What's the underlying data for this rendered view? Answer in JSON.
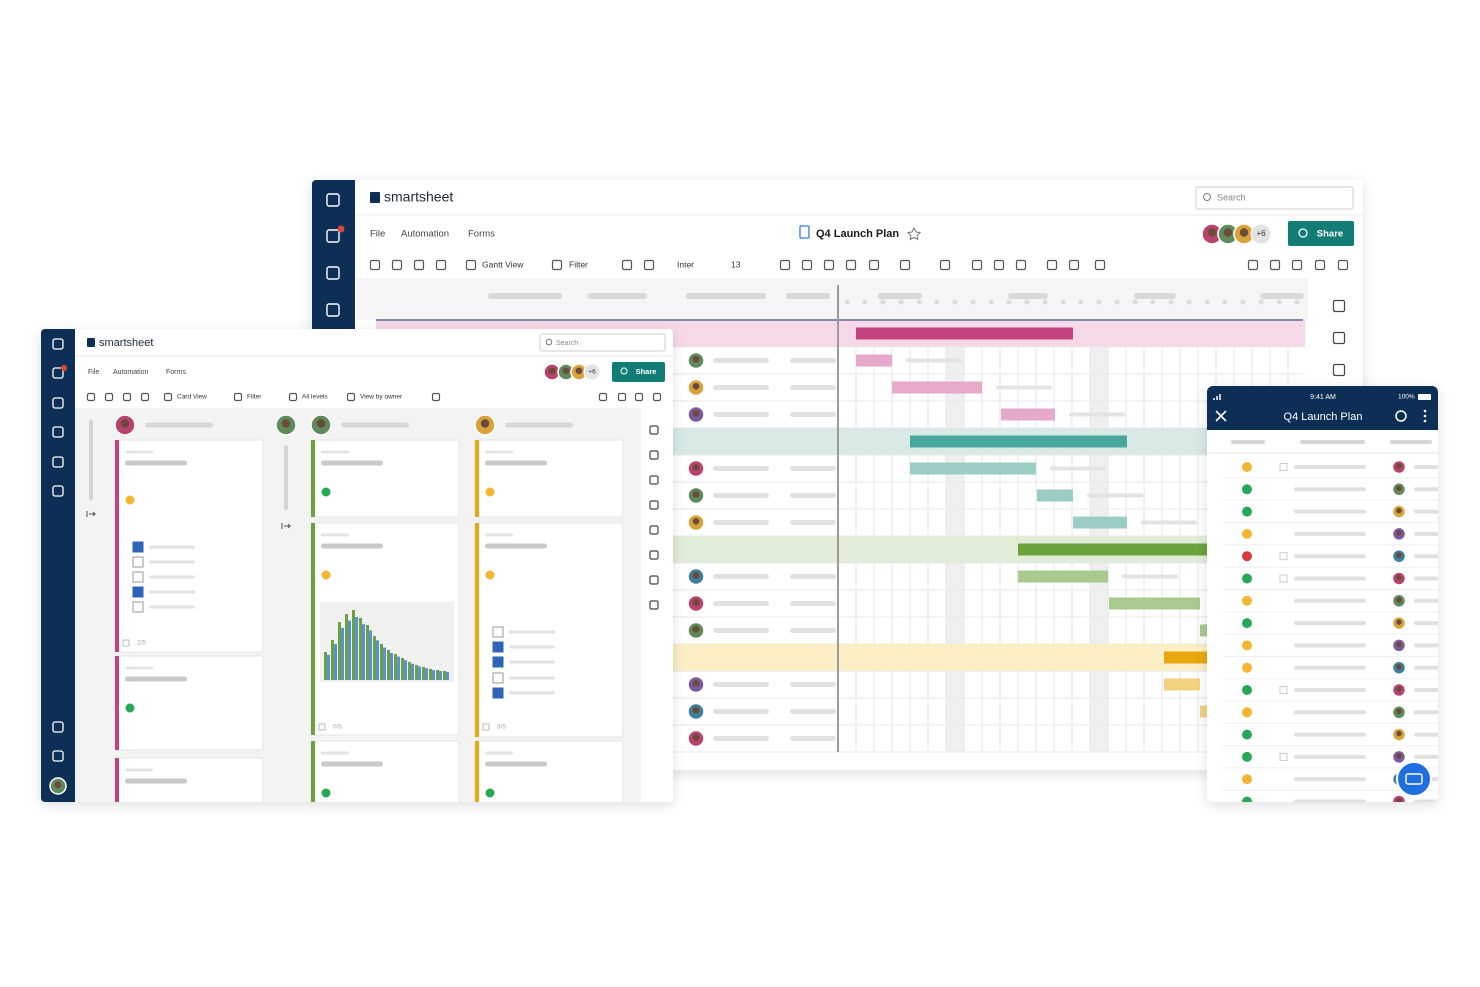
{
  "desktop_gantt": {
    "brand": "smartsheet",
    "search": "Search",
    "menu": [
      "File",
      "Automation",
      "Forms"
    ],
    "sheet_title": "Q4 Launch Plan",
    "collaborators_more": "+6",
    "share": "Share",
    "toolbar": {
      "view": "Gantt View",
      "filter": "Filter",
      "font": "Inter",
      "font_size": "13"
    }
  },
  "card_view": {
    "brand": "smartsheet",
    "search": "Search",
    "menu": [
      "File",
      "Automation",
      "Forms"
    ],
    "collaborators_more": "+6",
    "share": "Share",
    "toolbar": {
      "view": "Card View",
      "filter": "Filter",
      "levels": "All levels",
      "group": "View by owner"
    },
    "checklist_counts": [
      "2/5",
      "0/5",
      "3/5"
    ]
  },
  "mobile": {
    "time": "9:41 AM",
    "battery": "100%",
    "title": "Q4 Launch Plan"
  }
}
